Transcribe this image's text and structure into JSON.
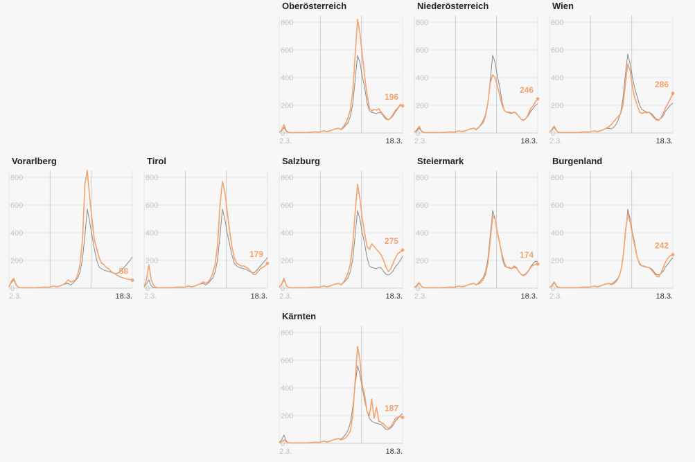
{
  "chart_data": [
    {
      "type": "line",
      "title": "Oberösterreich",
      "x_labels": [
        "2.3.",
        "18.3."
      ],
      "ylim": [
        0,
        850
      ],
      "ticks": [
        0,
        200,
        400,
        600,
        800
      ],
      "grid": true,
      "series": [
        {
          "color": "#888888",
          "values": [
            5,
            15,
            40,
            10,
            3,
            2,
            2,
            2,
            3,
            3,
            2,
            3,
            3,
            4,
            6,
            9,
            6,
            6,
            12,
            14,
            8,
            12,
            18,
            26,
            32,
            34,
            22,
            36,
            55,
            75,
            120,
            210,
            380,
            560,
            510,
            410,
            330,
            220,
            160,
            150,
            145,
            140,
            150,
            145,
            120,
            100,
            95,
            105,
            125,
            155,
            175,
            200,
            195
          ]
        },
        {
          "color": "#f5a26e",
          "values": [
            4,
            20,
            60,
            15,
            4,
            3,
            3,
            3,
            3,
            3,
            3,
            3,
            4,
            5,
            7,
            8,
            7,
            7,
            12,
            15,
            10,
            14,
            20,
            26,
            30,
            35,
            25,
            45,
            70,
            110,
            170,
            300,
            560,
            820,
            720,
            570,
            410,
            280,
            180,
            160,
            170,
            165,
            175,
            150,
            130,
            110,
            95,
            110,
            135,
            165,
            180,
            205,
            196
          ]
        }
      ],
      "end_label": "196"
    },
    {
      "type": "line",
      "title": "Niederösterreich",
      "x_labels": [
        "2.3.",
        "18.3."
      ],
      "ylim": [
        0,
        850
      ],
      "ticks": [
        0,
        200,
        400,
        600,
        800
      ],
      "grid": true,
      "series": [
        {
          "color": "#888888",
          "values": [
            5,
            15,
            35,
            10,
            3,
            2,
            2,
            2,
            3,
            3,
            2,
            3,
            3,
            4,
            6,
            9,
            6,
            6,
            12,
            14,
            8,
            12,
            18,
            26,
            32,
            34,
            22,
            36,
            55,
            75,
            120,
            210,
            380,
            560,
            510,
            410,
            330,
            220,
            160,
            150,
            145,
            140,
            150,
            145,
            120,
            100,
            95,
            105,
            125,
            155,
            175,
            200,
            210
          ]
        },
        {
          "color": "#f5a26e",
          "values": [
            4,
            22,
            48,
            14,
            4,
            3,
            3,
            3,
            3,
            3,
            3,
            3,
            4,
            5,
            7,
            8,
            7,
            7,
            12,
            15,
            10,
            14,
            20,
            26,
            30,
            35,
            25,
            40,
            60,
            90,
            130,
            220,
            360,
            420,
            400,
            340,
            270,
            200,
            160,
            150,
            150,
            145,
            150,
            140,
            120,
            100,
            90,
            105,
            135,
            175,
            195,
            225,
            246
          ]
        }
      ],
      "end_label": "246"
    },
    {
      "type": "line",
      "title": "Wien",
      "x_labels": [
        "2.3.",
        "18.3."
      ],
      "ylim": [
        0,
        850
      ],
      "ticks": [
        0,
        200,
        400,
        600,
        800
      ],
      "grid": true,
      "series": [
        {
          "color": "#888888",
          "values": [
            6,
            20,
            40,
            12,
            3,
            2,
            2,
            2,
            3,
            3,
            2,
            3,
            3,
            4,
            6,
            9,
            6,
            6,
            12,
            14,
            8,
            12,
            18,
            26,
            32,
            34,
            30,
            40,
            60,
            95,
            150,
            250,
            420,
            570,
            500,
            400,
            320,
            260,
            200,
            170,
            160,
            150,
            150,
            140,
            120,
            100,
            95,
            105,
            125,
            160,
            180,
            200,
            215
          ]
        },
        {
          "color": "#f5a26e",
          "values": [
            5,
            25,
            50,
            15,
            4,
            3,
            3,
            3,
            3,
            3,
            3,
            3,
            4,
            5,
            7,
            8,
            7,
            7,
            12,
            15,
            10,
            14,
            20,
            26,
            35,
            45,
            60,
            80,
            100,
            120,
            140,
            200,
            350,
            500,
            450,
            330,
            250,
            200,
            150,
            140,
            150,
            145,
            150,
            130,
            110,
            95,
            90,
            110,
            145,
            185,
            215,
            250,
            286
          ]
        }
      ],
      "end_label": "286"
    },
    {
      "type": "line",
      "title": "Vorarlberg",
      "x_labels": [
        "2.3.",
        "18.3."
      ],
      "ylim": [
        0,
        850
      ],
      "ticks": [
        0,
        200,
        400,
        600,
        800
      ],
      "grid": true,
      "series": [
        {
          "color": "#888888",
          "values": [
            10,
            40,
            60,
            20,
            5,
            3,
            2,
            2,
            3,
            3,
            2,
            3,
            3,
            4,
            6,
            9,
            6,
            6,
            12,
            14,
            8,
            12,
            18,
            26,
            32,
            34,
            22,
            36,
            55,
            75,
            120,
            210,
            380,
            570,
            480,
            380,
            280,
            200,
            150,
            140,
            130,
            125,
            120,
            115,
            110,
            105,
            110,
            120,
            140,
            160,
            180,
            200,
            225
          ]
        },
        {
          "color": "#f5a26e",
          "values": [
            8,
            50,
            70,
            25,
            5,
            3,
            3,
            3,
            3,
            3,
            3,
            3,
            4,
            5,
            7,
            8,
            7,
            7,
            12,
            15,
            10,
            14,
            20,
            26,
            40,
            60,
            45,
            50,
            60,
            100,
            180,
            350,
            750,
            850,
            650,
            500,
            350,
            280,
            220,
            180,
            170,
            150,
            140,
            120,
            110,
            100,
            90,
            80,
            75,
            70,
            65,
            62,
            58
          ]
        }
      ],
      "end_label": "58"
    },
    {
      "type": "line",
      "title": "Tirol",
      "x_labels": [
        "2.3.",
        "18.3."
      ],
      "ylim": [
        0,
        850
      ],
      "ticks": [
        0,
        200,
        400,
        600,
        800
      ],
      "grid": true,
      "series": [
        {
          "color": "#888888",
          "values": [
            8,
            30,
            60,
            15,
            4,
            3,
            2,
            2,
            3,
            3,
            2,
            3,
            3,
            4,
            6,
            9,
            6,
            6,
            12,
            14,
            8,
            12,
            18,
            26,
            32,
            34,
            22,
            36,
            55,
            75,
            120,
            210,
            380,
            570,
            500,
            400,
            320,
            240,
            180,
            160,
            150,
            145,
            140,
            135,
            125,
            115,
            110,
            120,
            140,
            160,
            180,
            200,
            220
          ]
        },
        {
          "color": "#f5a26e",
          "values": [
            10,
            60,
            170,
            60,
            20,
            5,
            3,
            3,
            3,
            3,
            3,
            3,
            4,
            5,
            7,
            8,
            7,
            7,
            12,
            15,
            10,
            14,
            20,
            26,
            35,
            45,
            35,
            45,
            70,
            110,
            180,
            320,
            600,
            770,
            700,
            560,
            420,
            300,
            220,
            180,
            170,
            160,
            160,
            150,
            140,
            120,
            100,
            100,
            120,
            140,
            150,
            160,
            179
          ]
        }
      ],
      "end_label": "179"
    },
    {
      "type": "line",
      "title": "Salzburg",
      "x_labels": [
        "2.3.",
        "18.3."
      ],
      "ylim": [
        0,
        850
      ],
      "ticks": [
        0,
        200,
        400,
        600,
        800
      ],
      "grid": true,
      "series": [
        {
          "color": "#888888",
          "values": [
            6,
            25,
            60,
            15,
            4,
            3,
            2,
            2,
            3,
            3,
            2,
            3,
            3,
            4,
            6,
            9,
            6,
            6,
            12,
            14,
            8,
            12,
            18,
            26,
            32,
            34,
            22,
            36,
            55,
            75,
            120,
            210,
            380,
            560,
            500,
            400,
            320,
            220,
            160,
            150,
            145,
            140,
            150,
            145,
            120,
            100,
            95,
            105,
            125,
            155,
            175,
            200,
            230
          ]
        },
        {
          "color": "#f5a26e",
          "values": [
            5,
            30,
            70,
            18,
            4,
            3,
            3,
            3,
            3,
            3,
            3,
            3,
            4,
            5,
            7,
            8,
            7,
            7,
            12,
            15,
            10,
            14,
            20,
            26,
            30,
            35,
            25,
            40,
            70,
            110,
            180,
            320,
            550,
            750,
            650,
            500,
            400,
            300,
            280,
            320,
            300,
            280,
            260,
            240,
            200,
            150,
            120,
            140,
            180,
            220,
            250,
            260,
            275
          ]
        }
      ],
      "end_label": "275"
    },
    {
      "type": "line",
      "title": "Steiermark",
      "x_labels": [
        "2.3.",
        "18.3."
      ],
      "ylim": [
        0,
        850
      ],
      "ticks": [
        0,
        200,
        400,
        600,
        800
      ],
      "grid": true,
      "series": [
        {
          "color": "#888888",
          "values": [
            5,
            15,
            35,
            10,
            3,
            2,
            2,
            2,
            3,
            3,
            2,
            3,
            3,
            4,
            6,
            9,
            6,
            6,
            12,
            14,
            8,
            12,
            18,
            26,
            32,
            34,
            22,
            36,
            55,
            75,
            120,
            210,
            380,
            560,
            500,
            410,
            330,
            220,
            160,
            150,
            145,
            140,
            150,
            145,
            120,
            100,
            95,
            105,
            125,
            155,
            175,
            195,
            190
          ]
        },
        {
          "color": "#f5a26e",
          "values": [
            4,
            20,
            40,
            12,
            4,
            3,
            3,
            3,
            3,
            3,
            3,
            3,
            4,
            5,
            7,
            8,
            7,
            7,
            12,
            15,
            10,
            14,
            20,
            26,
            30,
            35,
            25,
            30,
            40,
            60,
            100,
            180,
            340,
            520,
            500,
            400,
            320,
            240,
            180,
            150,
            150,
            140,
            160,
            150,
            120,
            100,
            90,
            100,
            120,
            150,
            165,
            170,
            174
          ]
        }
      ],
      "end_label": "174"
    },
    {
      "type": "line",
      "title": "Burgenland",
      "x_labels": [
        "2.3.",
        "18.3."
      ],
      "ylim": [
        0,
        850
      ],
      "ticks": [
        0,
        200,
        400,
        600,
        800
      ],
      "grid": true,
      "series": [
        {
          "color": "#888888",
          "values": [
            5,
            15,
            40,
            10,
            3,
            2,
            2,
            2,
            3,
            3,
            2,
            3,
            3,
            4,
            6,
            9,
            6,
            6,
            12,
            14,
            8,
            12,
            18,
            26,
            32,
            34,
            30,
            40,
            55,
            75,
            120,
            210,
            380,
            570,
            500,
            400,
            320,
            220,
            170,
            160,
            155,
            150,
            150,
            140,
            120,
            100,
            95,
            105,
            125,
            155,
            175,
            200,
            220
          ]
        },
        {
          "color": "#f5a26e",
          "values": [
            4,
            20,
            45,
            14,
            4,
            3,
            3,
            3,
            3,
            3,
            3,
            3,
            4,
            5,
            7,
            8,
            7,
            7,
            12,
            15,
            10,
            14,
            20,
            26,
            30,
            35,
            25,
            30,
            45,
            70,
            120,
            220,
            400,
            540,
            480,
            380,
            300,
            220,
            180,
            160,
            160,
            150,
            150,
            130,
            110,
            90,
            80,
            110,
            150,
            190,
            220,
            235,
            242
          ]
        }
      ],
      "end_label": "242"
    },
    {
      "type": "line",
      "title": "Kärnten",
      "x_labels": [
        "2.3.",
        "18.3."
      ],
      "ylim": [
        0,
        850
      ],
      "ticks": [
        0,
        200,
        400,
        600,
        800
      ],
      "grid": true,
      "series": [
        {
          "color": "#888888",
          "values": [
            6,
            25,
            60,
            15,
            4,
            3,
            2,
            2,
            3,
            3,
            2,
            3,
            3,
            4,
            6,
            9,
            6,
            6,
            12,
            14,
            8,
            12,
            18,
            26,
            32,
            34,
            30,
            45,
            65,
            95,
            150,
            260,
            420,
            560,
            500,
            400,
            310,
            230,
            180,
            160,
            150,
            145,
            140,
            135,
            120,
            100,
            100,
            110,
            130,
            160,
            180,
            200,
            215
          ]
        },
        {
          "color": "#f5a26e",
          "values": [
            4,
            12,
            25,
            10,
            4,
            3,
            3,
            3,
            3,
            3,
            3,
            3,
            4,
            5,
            7,
            8,
            7,
            7,
            12,
            15,
            10,
            14,
            20,
            26,
            30,
            35,
            25,
            30,
            40,
            60,
            90,
            200,
            450,
            700,
            600,
            420,
            350,
            230,
            200,
            320,
            180,
            260,
            160,
            150,
            140,
            120,
            110,
            120,
            150,
            180,
            190,
            192,
            187
          ]
        }
      ],
      "end_label": "187"
    }
  ]
}
